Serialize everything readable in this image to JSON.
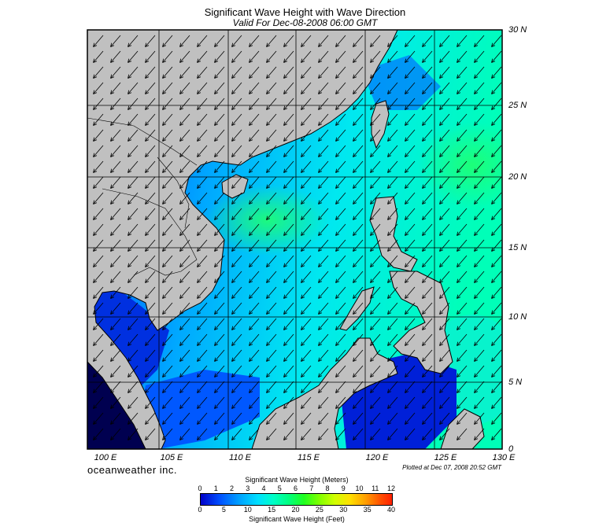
{
  "title": "Significant Wave Height with Wave Direction",
  "subtitle": "Valid For Dec-08-2008 06:00 GMT",
  "lat_labels": [
    "30 N",
    "25 N",
    "20 N",
    "15 N",
    "10 N",
    "5 N",
    "0"
  ],
  "lon_labels": [
    "100 E",
    "105 E",
    "110 E",
    "115 E",
    "120 E",
    "125 E",
    "130 E"
  ],
  "brand": "oceanweather inc.",
  "plotted": "Plotted at Dec 07, 2008 20:52 GMT",
  "colorbar": {
    "meters_title": "Significant Wave Height (Meters)",
    "meters_ticks": [
      "0",
      "1",
      "2",
      "3",
      "4",
      "5",
      "6",
      "7",
      "8",
      "9",
      "10",
      "11",
      "12"
    ],
    "feet_ticks": [
      "0",
      "5",
      "10",
      "15",
      "20",
      "25",
      "30",
      "35",
      "40"
    ],
    "feet_title": "Significant Wave Height (Feet)"
  },
  "colors": {
    "land": "#c0c0c0",
    "deep": "#0000c8",
    "mid": "#0080ff",
    "high": "#00ffc8",
    "peak": "#20ff60"
  },
  "wave_direction": "from northeast"
}
